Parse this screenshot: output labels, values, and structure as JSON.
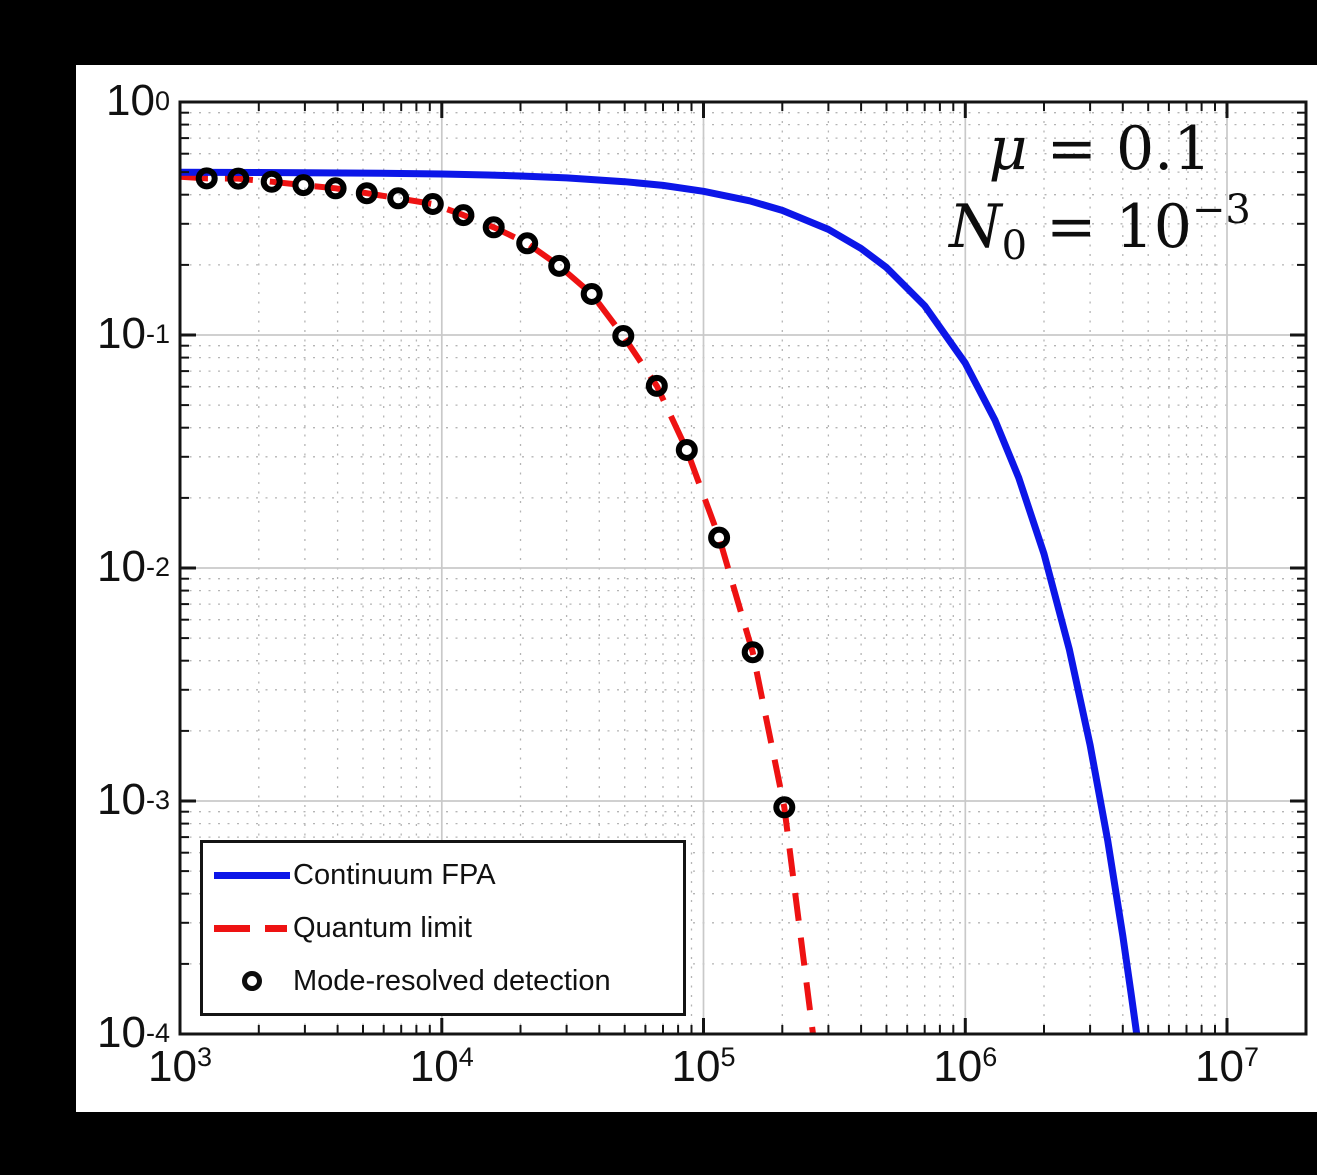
{
  "figure": {
    "background": "#000000",
    "panel": "#ffffff",
    "axis_color": "#141414",
    "major_grid_color": "#c9c9c9",
    "minor_grid_color": "#a8a8a8"
  },
  "annotation": {
    "mu_var": "μ",
    "mu_rest": " = 0.1",
    "n0_var": "N",
    "n0_sub": "0",
    "n0_rest": " = 10",
    "n0_sup": "−3"
  },
  "legend": {
    "items": [
      {
        "label": "Continuum FPA",
        "color": "#0c16e8",
        "style": "solid-line"
      },
      {
        "label": "Quantum limit",
        "color": "#ee1212",
        "style": "dashed-line"
      },
      {
        "label": "Mode-resolved detection",
        "color": "#000000",
        "style": "circle-marker"
      }
    ]
  },
  "axes": {
    "x_ticks": [
      {
        "value": 1000,
        "base": "10",
        "exp": "3"
      },
      {
        "value": 10000,
        "base": "10",
        "exp": "4"
      },
      {
        "value": 100000,
        "base": "10",
        "exp": "5"
      },
      {
        "value": 1000000,
        "base": "10",
        "exp": "6"
      },
      {
        "value": 10000000,
        "base": "10",
        "exp": "7"
      }
    ],
    "y_ticks": [
      {
        "value": 1,
        "base": "10",
        "exp": "0"
      },
      {
        "value": 0.1,
        "base": "10",
        "exp": "-1"
      },
      {
        "value": 0.01,
        "base": "10",
        "exp": "-2"
      },
      {
        "value": 0.001,
        "base": "10",
        "exp": "-3"
      },
      {
        "value": 0.0001,
        "base": "10",
        "exp": "-4"
      }
    ]
  },
  "chart_data": {
    "type": "line",
    "x_scale": "log",
    "y_scale": "log",
    "xlim": [
      1000,
      20000000
    ],
    "ylim": [
      0.0001,
      1
    ],
    "grid": {
      "major": true,
      "minor": true
    },
    "legend_position": "lower-left",
    "annotations": [
      "μ = 0.1",
      "N₀ = 10⁻³"
    ],
    "series": [
      {
        "name": "Continuum FPA",
        "type": "line",
        "style": "solid",
        "color": "#0c16e8",
        "width": 7,
        "points": [
          [
            1000,
            0.4995
          ],
          [
            2000,
            0.4981
          ],
          [
            3000,
            0.4972
          ],
          [
            5000,
            0.4953
          ],
          [
            7000,
            0.4934
          ],
          [
            10000,
            0.4907
          ],
          [
            15000,
            0.486
          ],
          [
            20000,
            0.4815
          ],
          [
            30000,
            0.4724
          ],
          [
            50000,
            0.4551
          ],
          [
            70000,
            0.4384
          ],
          [
            100000,
            0.4139
          ],
          [
            150000,
            0.3766
          ],
          [
            200000,
            0.3427
          ],
          [
            300000,
            0.2838
          ],
          [
            400000,
            0.235
          ],
          [
            500000,
            0.1946
          ],
          [
            700000,
            0.1334
          ],
          [
            1000000,
            0.0757
          ],
          [
            1300000,
            0.043
          ],
          [
            1600000,
            0.0244
          ],
          [
            2000000,
            0.0115
          ],
          [
            2500000,
            0.00446
          ],
          [
            3000000,
            0.00174
          ],
          [
            3500000,
            0.000677
          ],
          [
            4000000,
            0.000264
          ],
          [
            4300000,
            0.000149
          ],
          [
            4520000,
            0.0001
          ]
        ]
      },
      {
        "name": "Quantum limit",
        "type": "line",
        "style": "dashed",
        "color": "#ee1212",
        "width": 6,
        "points": [
          [
            1000,
            0.478
          ],
          [
            1265,
            0.47
          ],
          [
            1670,
            0.469
          ],
          [
            2240,
            0.455
          ],
          [
            2960,
            0.44
          ],
          [
            3930,
            0.426
          ],
          [
            5170,
            0.406
          ],
          [
            6820,
            0.386
          ],
          [
            9240,
            0.365
          ],
          [
            12100,
            0.327
          ],
          [
            15800,
            0.29
          ],
          [
            21200,
            0.2475
          ],
          [
            28100,
            0.198
          ],
          [
            37400,
            0.15
          ],
          [
            49400,
            0.099
          ],
          [
            66300,
            0.0605
          ],
          [
            86300,
            0.0321
          ],
          [
            114700,
            0.0135
          ],
          [
            154200,
            0.00435
          ],
          [
            203600,
            0.00094
          ],
          [
            262000,
            0.0001
          ]
        ]
      },
      {
        "name": "Mode-resolved detection",
        "type": "scatter",
        "marker": "open-circle",
        "color": "#000000",
        "points": [
          [
            1265,
            0.47
          ],
          [
            1670,
            0.469
          ],
          [
            2240,
            0.455
          ],
          [
            2960,
            0.44
          ],
          [
            3930,
            0.426
          ],
          [
            5170,
            0.406
          ],
          [
            6820,
            0.386
          ],
          [
            9240,
            0.365
          ],
          [
            12100,
            0.327
          ],
          [
            15800,
            0.29
          ],
          [
            21200,
            0.2475
          ],
          [
            28100,
            0.198
          ],
          [
            37400,
            0.15
          ],
          [
            49400,
            0.099
          ],
          [
            66300,
            0.0605
          ],
          [
            86300,
            0.0321
          ],
          [
            114700,
            0.0135
          ],
          [
            154200,
            0.00435
          ],
          [
            203600,
            0.00094
          ]
        ]
      }
    ]
  }
}
